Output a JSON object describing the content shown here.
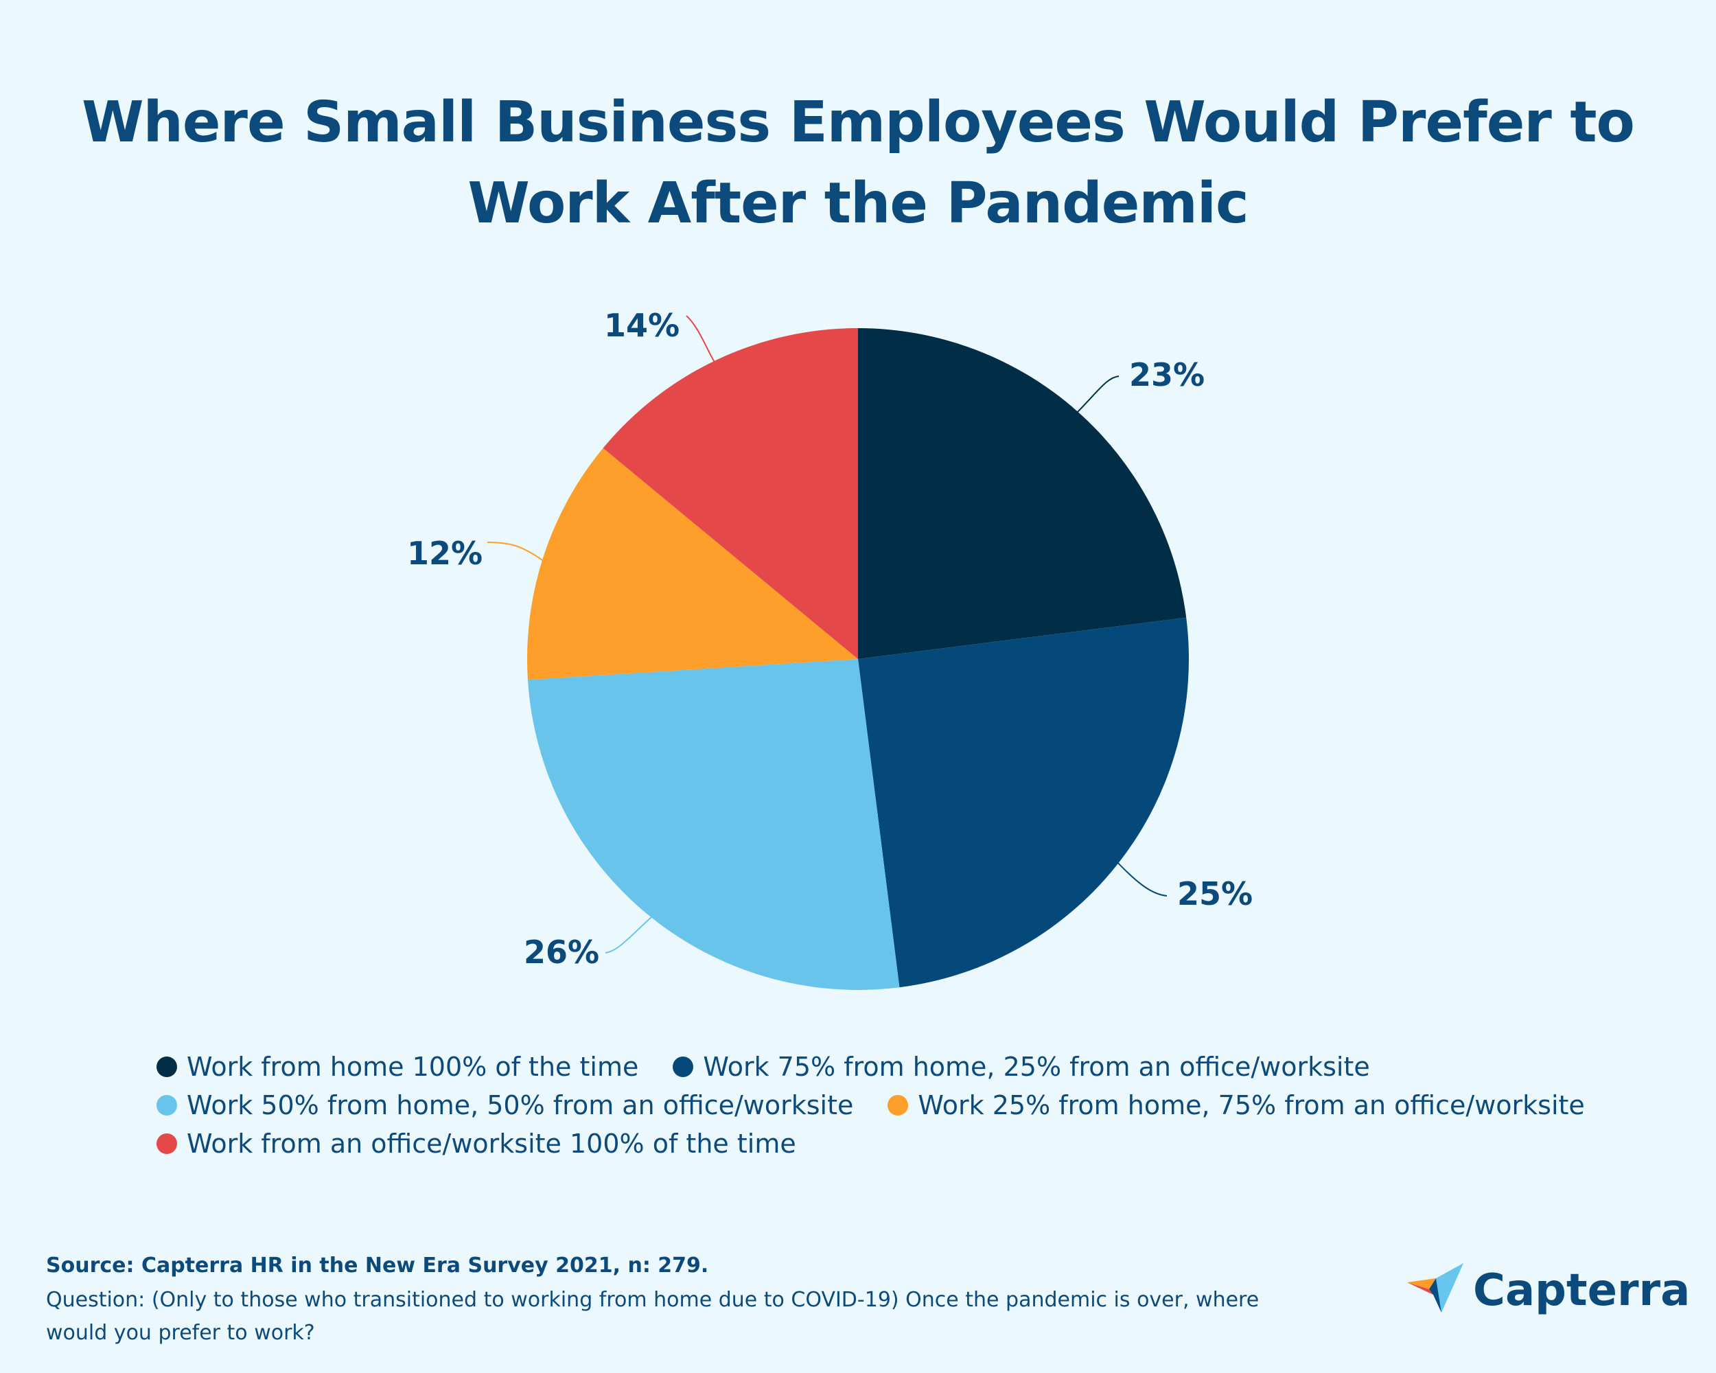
{
  "title_line1": "Where Small Business Employees Would Prefer to",
  "title_line2": "Work After the Pandemic",
  "chart_data": {
    "type": "pie",
    "categories": [
      "Work from home 100% of the time",
      "Work 75% from home, 25% from an office/worksite",
      "Work 50% from home, 50% from an office/worksite",
      "Work 25% from home, 75% from an office/worksite",
      "Work from an office/worksite 100% of the time"
    ],
    "values": [
      23,
      25,
      26,
      12,
      14
    ],
    "labels": [
      "23%",
      "25%",
      "26%",
      "12%",
      "14%"
    ],
    "colors": [
      "#012d47",
      "#05497b",
      "#69c4ec",
      "#fd9f2a",
      "#e44848"
    ],
    "start_angle": "12 o'clock",
    "direction": "clockwise",
    "legend_position": "bottom"
  },
  "legend": [
    {
      "label": "Work from home 100% of the time",
      "color": "#012d47"
    },
    {
      "label": "Work 75% from home, 25% from an office/worksite",
      "color": "#05497b"
    },
    {
      "label": "Work 50% from home, 50% from an office/worksite",
      "color": "#69c4ec"
    },
    {
      "label": "Work 25% from home, 75% from an office/worksite",
      "color": "#fd9f2a"
    },
    {
      "label": "Work from an office/worksite 100% of the time",
      "color": "#e44848"
    }
  ],
  "source": "Source: Capterra HR in the New Era Survey 2021, n: 279.",
  "question": "Question: (Only to those who transitioned to working from home due to COVID-19) Once the pandemic is over, where would you prefer to work?",
  "logo_text": "Capterra"
}
